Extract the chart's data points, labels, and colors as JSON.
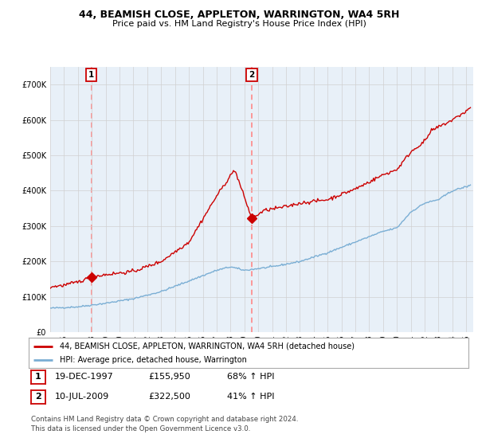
{
  "title": "44, BEAMISH CLOSE, APPLETON, WARRINGTON, WA4 5RH",
  "subtitle": "Price paid vs. HM Land Registry's House Price Index (HPI)",
  "ylim": [
    0,
    750000
  ],
  "xlim_start": 1995.0,
  "xlim_end": 2025.5,
  "purchase1_date": 1997.96,
  "purchase1_price": 155950,
  "purchase1_label": "1",
  "purchase2_date": 2009.53,
  "purchase2_price": 322500,
  "purchase2_label": "2",
  "legend_line1": "44, BEAMISH CLOSE, APPLETON, WARRINGTON, WA4 5RH (detached house)",
  "legend_line2": "HPI: Average price, detached house, Warrington",
  "table_row1": [
    "1",
    "19-DEC-1997",
    "£155,950",
    "68% ↑ HPI"
  ],
  "table_row2": [
    "2",
    "10-JUL-2009",
    "£322,500",
    "41% ↑ HPI"
  ],
  "footer": "Contains HM Land Registry data © Crown copyright and database right 2024.\nThis data is licensed under the Open Government Licence v3.0.",
  "hpi_color": "#7aaed4",
  "price_color": "#cc0000",
  "dashed_color": "#ff8888",
  "grid_color": "#d0d0d0",
  "bg_color": "#ffffff",
  "plot_bg_color": "#e8f0f8"
}
